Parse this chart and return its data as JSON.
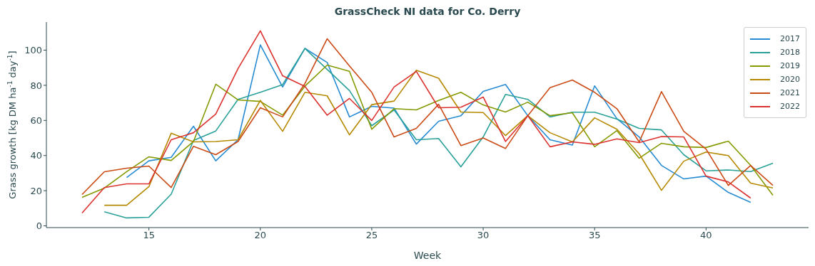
{
  "chart_data": {
    "type": "line",
    "title": "GrassCheck NI data for Co. Derry",
    "xlabel": "Week",
    "ylabel": "Grass growth [kg DM ha$^{-1}$ day$^{-1}$]",
    "xlim": [
      10.4,
      44.6
    ],
    "ylim": [
      -1,
      116
    ],
    "xticks": [
      15,
      20,
      25,
      30,
      35,
      40
    ],
    "yticks": [
      0,
      20,
      40,
      60,
      80,
      100
    ],
    "grid": false,
    "legend": "top right",
    "marker": "none",
    "line_style": "solid",
    "series": [
      {
        "name": "2017",
        "color": "#268bd2",
        "x": [
          14,
          15,
          16,
          17,
          18,
          19,
          20,
          21,
          22,
          23,
          24,
          25,
          26,
          27,
          28,
          29,
          30,
          31,
          32,
          33,
          34,
          35,
          36,
          37,
          38,
          39,
          40,
          41,
          42
        ],
        "values": [
          27.5,
          37,
          39,
          56.7,
          37,
          49,
          103,
          79,
          101,
          93,
          62,
          68,
          67,
          46.5,
          59.5,
          62.7,
          76.5,
          80.5,
          62.7,
          49,
          46,
          79.7,
          61,
          50.6,
          34.4,
          26.7,
          28.3,
          19,
          13.4
        ]
      },
      {
        "name": "2018",
        "color": "#2aa198",
        "x": [
          13,
          14,
          15,
          16,
          17,
          18,
          19,
          20,
          21,
          22,
          23,
          24,
          25,
          26,
          27,
          28,
          29,
          30,
          31,
          32,
          33,
          34,
          35,
          36,
          37,
          38,
          39,
          40,
          41,
          42,
          43
        ],
        "values": [
          8,
          4.5,
          4.9,
          18,
          48.6,
          54,
          72,
          76,
          80.4,
          101,
          89,
          77,
          57,
          66,
          49,
          49.7,
          33.6,
          50.6,
          74.8,
          72,
          62,
          64.7,
          64.7,
          60.7,
          55.5,
          54.6,
          40.5,
          31.3,
          31.8,
          30.9,
          35.6
        ]
      },
      {
        "name": "2019",
        "color": "#859900",
        "x": [
          12,
          13,
          14,
          15,
          16,
          17,
          18,
          19,
          20,
          21,
          22,
          23,
          24,
          25,
          26,
          27,
          28,
          29,
          30,
          31,
          32,
          33,
          34,
          35,
          36,
          37,
          38,
          39,
          40,
          41,
          42,
          43
        ],
        "values": [
          16.2,
          21.5,
          30.8,
          39.3,
          37.2,
          48,
          80.6,
          71.7,
          70.8,
          63,
          79.5,
          91.5,
          88,
          55,
          66.7,
          66,
          71.4,
          76,
          68.8,
          64.8,
          70.4,
          62.7,
          64.4,
          45,
          54.2,
          38.5,
          47,
          45,
          44.6,
          48.2,
          34.4,
          17.4
        ]
      },
      {
        "name": "2020",
        "color": "#b58900",
        "x": [
          13,
          14,
          15,
          16,
          17,
          18,
          19,
          20,
          21,
          22,
          23,
          24,
          25,
          26,
          27,
          28,
          29,
          30,
          31,
          32,
          33,
          34,
          35,
          36,
          37,
          38,
          39,
          40,
          41,
          42,
          43
        ],
        "values": [
          11.7,
          11.7,
          22.3,
          52.7,
          47.8,
          48,
          49,
          71.4,
          53.8,
          76,
          74,
          51.8,
          69,
          71,
          88.6,
          84,
          64.8,
          64.5,
          51.4,
          62.7,
          53,
          47.8,
          61.5,
          55,
          41,
          20.2,
          36.8,
          42,
          40,
          24.3,
          21.6
        ]
      },
      {
        "name": "2021",
        "color": "#cb4b16",
        "x": [
          12,
          13,
          14,
          15,
          16,
          17,
          18,
          19,
          20,
          21,
          22,
          23,
          24,
          25,
          26,
          27,
          28,
          29,
          30,
          31,
          32,
          33,
          34,
          35,
          36,
          37,
          38,
          39,
          40,
          41,
          42,
          43
        ],
        "values": [
          17.8,
          30.8,
          32.8,
          34,
          21.8,
          45.3,
          40.5,
          48,
          67.2,
          62,
          81,
          106.5,
          91,
          76,
          50.6,
          55.5,
          69.2,
          45.7,
          50,
          44,
          62.7,
          78.7,
          83,
          76,
          66.7,
          47.8,
          76.4,
          53.8,
          43.7,
          23,
          34.4,
          23
        ]
      },
      {
        "name": "2022",
        "color": "#dc322f",
        "x": [
          12,
          13,
          14,
          15,
          16,
          17,
          18,
          19,
          20,
          21,
          22,
          23,
          24,
          25,
          26,
          27,
          28,
          29,
          30,
          31,
          32,
          33,
          34,
          35,
          36,
          37,
          38,
          39,
          40,
          41,
          42
        ],
        "values": [
          7.3,
          21.8,
          23.9,
          23.9,
          49,
          53,
          63.6,
          89.5,
          111,
          85.4,
          79.4,
          63,
          72.5,
          60,
          79,
          87.9,
          67.2,
          67.5,
          73.3,
          48,
          62.7,
          45,
          47.8,
          46.4,
          49.5,
          47.4,
          50.8,
          50.6,
          28.3,
          25,
          15.8
        ]
      }
    ]
  }
}
